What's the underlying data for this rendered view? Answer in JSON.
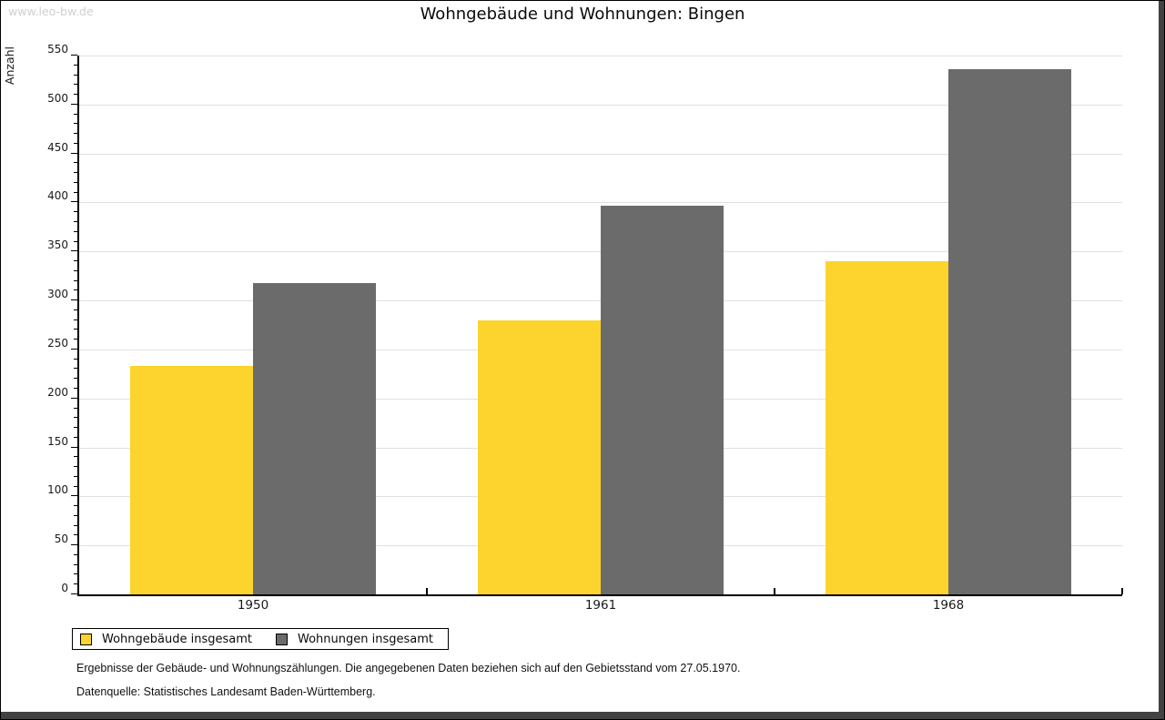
{
  "page": {
    "watermark": "www.leo-bw.de",
    "title": "Wohngebäude und Wohnungen: Bingen"
  },
  "footer": {
    "line1": "Ergebnisse der Gebäude- und Wohnungszählungen. Die angegebenen Daten beziehen sich auf den Gebietsstand vom 27.05.1970.",
    "line2": "Datenquelle: Statistisches Landesamt Baden-Württemberg."
  },
  "colors": {
    "series_yellow": "#fcd42d",
    "series_gray": "#6b6b6b",
    "gridline": "#e0e0e0",
    "watermark": "#cfcfcf",
    "axis": "#000000",
    "edge_shadow": "#424242"
  },
  "chart_data": {
    "type": "bar",
    "title": "Wohngebäude und Wohnungen: Bingen",
    "xlabel": "",
    "ylabel": "Anzahl",
    "categories": [
      "1950",
      "1961",
      "1968"
    ],
    "series": [
      {
        "name": "Wohngebäude insgesamt",
        "color": "#fcd42d",
        "values": [
          233,
          280,
          340
        ]
      },
      {
        "name": "Wohnungen insgesamt",
        "color": "#6b6b6b",
        "values": [
          318,
          397,
          536
        ]
      }
    ],
    "ylim": [
      0,
      550
    ],
    "ytick_major": 50,
    "ytick_minor": 10,
    "grid": "horizontal-major",
    "legend_position": "bottom-left",
    "annotations": [
      "Ergebnisse der Gebäude- und Wohnungszählungen. Die angegebenen Daten beziehen sich auf den Gebietsstand vom 27.05.1970.",
      "Datenquelle: Statistisches Landesamt Baden-Württemberg."
    ]
  }
}
